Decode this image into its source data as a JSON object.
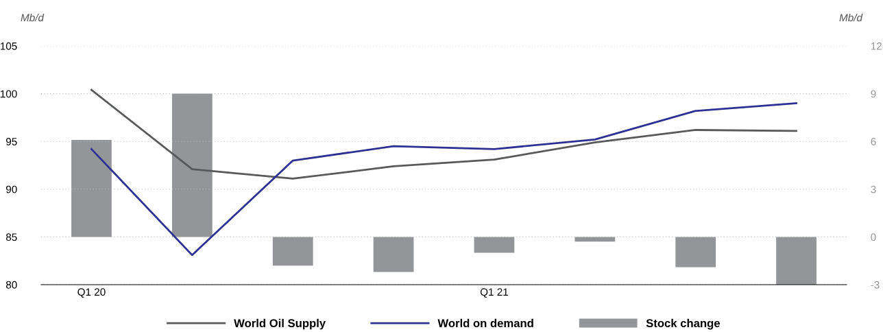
{
  "chart_data": {
    "type": "line",
    "ylabel": "Mb/d",
    "y2label": "Mb/d",
    "categories": [
      "Q1 20",
      null,
      null,
      null,
      "Q1 21",
      null,
      null,
      null
    ],
    "series": [
      {
        "name": "World Oil Supply",
        "color": "#58595b",
        "values": [
          100.4,
          92.1,
          91.1,
          92.4,
          93.1,
          94.9,
          96.2,
          96.1
        ]
      },
      {
        "name": "World on demand",
        "color": "#2e3192",
        "values": [
          94.2,
          83.1,
          93.0,
          94.5,
          94.2,
          95.2,
          98.2,
          99.0
        ]
      },
      {
        "name": "Stock change",
        "type": "bar",
        "axis": "y2",
        "color": "#939598",
        "values": [
          6.1,
          9.0,
          -1.8,
          -2.2,
          -1.0,
          -0.3,
          -1.9,
          -3.0
        ]
      }
    ],
    "ylim": [
      80,
      105
    ],
    "yticks": [
      80,
      85,
      90,
      95,
      100,
      105
    ],
    "y2lim": [
      -3,
      12
    ],
    "y2ticks": [
      -3,
      0,
      3,
      6,
      9,
      12
    ],
    "grid": "y",
    "legend": "bottom",
    "marker": "none",
    "line_style": "solid"
  }
}
